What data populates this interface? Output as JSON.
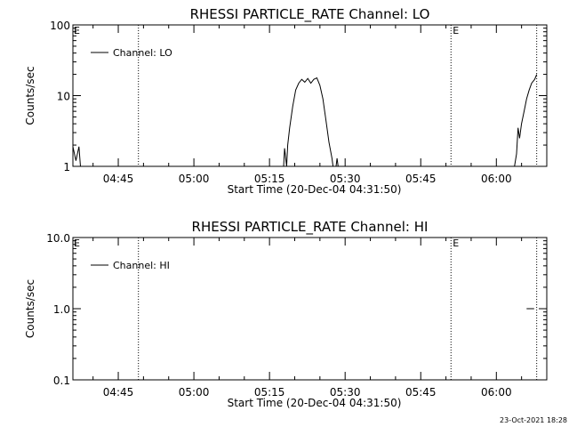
{
  "chart_data": [
    {
      "type": "line",
      "title": "RHESSI PARTICLE_RATE Channel: LO",
      "xlabel": "Start Time (20-Dec-04 04:31:50)",
      "ylabel": "Counts/sec",
      "y_scale": "log",
      "ylim": [
        1,
        100
      ],
      "y_ticks": [
        1,
        10,
        100
      ],
      "y_tick_labels": [
        "1",
        "10",
        "100"
      ],
      "xlim": [
        "04:36",
        "06:10"
      ],
      "x_ticks": [
        "04:45",
        "05:00",
        "05:15",
        "05:30",
        "05:45",
        "06:00"
      ],
      "legend": "top-left",
      "grid": false,
      "event_lines": [
        {
          "time": "04:49",
          "label": ""
        },
        {
          "time": "05:51",
          "label": "E"
        },
        {
          "time": "06:08",
          "label": ""
        }
      ],
      "left_marker": "E",
      "series": [
        {
          "name": "Channel: LO",
          "segments": [
            {
              "x": [
                "04:36.0",
                "04:36.6",
                "04:37.2",
                "04:37.5"
              ],
              "y": [
                1.9,
                1.2,
                1.9,
                0.8
              ]
            },
            {
              "x": [
                "05:17.8",
                "05:18.0",
                "05:18.4",
                "05:18.6",
                "05:19.0",
                "05:19.6",
                "05:20.2",
                "05:20.8",
                "05:21.4",
                "05:22.0",
                "05:22.6",
                "05:23.2",
                "05:23.8",
                "05:24.4",
                "05:25.0",
                "05:25.6",
                "05:26.2",
                "05:26.8",
                "05:27.4",
                "05:27.6"
              ],
              "y": [
                0.8,
                1.8,
                1.0,
                2.0,
                3.5,
                7.0,
                12.0,
                15.0,
                17.0,
                15.5,
                17.5,
                15.0,
                17.0,
                17.8,
                14.0,
                9.0,
                4.5,
                2.2,
                1.3,
                0.8
              ]
            },
            {
              "x": [
                "05:28.2",
                "05:28.4",
                "05:28.6"
              ],
              "y": [
                0.8,
                1.3,
                0.8
              ]
            },
            {
              "x": [
                "06:03.6",
                "06:04.0",
                "06:04.3",
                "06:04.6",
                "06:05.0",
                "06:05.5",
                "06:06.0",
                "06:06.5",
                "06:07.0",
                "06:07.6",
                "06:08.0"
              ],
              "y": [
                0.8,
                1.5,
                3.5,
                2.5,
                4.0,
                6.0,
                9.0,
                12.0,
                15.0,
                17.0,
                20.0
              ]
            }
          ]
        }
      ]
    },
    {
      "type": "line",
      "title": "RHESSI PARTICLE_RATE Channel: HI",
      "xlabel": "Start Time (20-Dec-04 04:31:50)",
      "ylabel": "Counts/sec",
      "y_scale": "log",
      "ylim": [
        0.1,
        10
      ],
      "y_ticks": [
        0.1,
        1,
        10
      ],
      "y_tick_labels": [
        "0.1",
        "1.0",
        "10.0"
      ],
      "xlim": [
        "04:36",
        "06:10"
      ],
      "x_ticks": [
        "04:45",
        "05:00",
        "05:15",
        "05:30",
        "05:45",
        "06:00"
      ],
      "legend": "top-left",
      "grid": false,
      "event_lines": [
        {
          "time": "04:49",
          "label": ""
        },
        {
          "time": "05:51",
          "label": "E"
        },
        {
          "time": "06:08",
          "label": ""
        }
      ],
      "left_marker": "E",
      "series": [
        {
          "name": "Channel: HI",
          "segments": [
            {
              "x": [
                "06:06.0",
                "06:07.5"
              ],
              "y": [
                1.0,
                1.0
              ]
            }
          ]
        }
      ]
    }
  ],
  "footer": {
    "timestamp": "23-Oct-2021 18:28"
  }
}
